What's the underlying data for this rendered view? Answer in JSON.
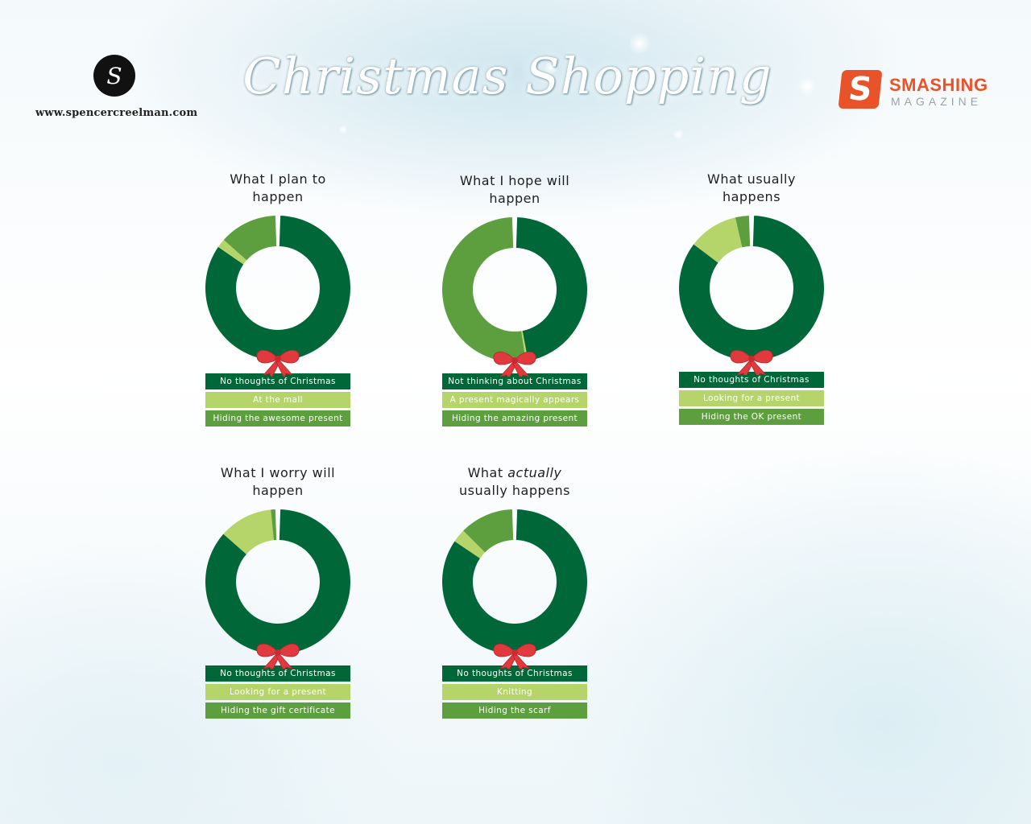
{
  "header": {
    "logo_letter": "S",
    "site_url": "www.spencercreelman.com",
    "title": "Christmas Shopping",
    "brand_badge": "S",
    "brand_name": "SMASHING",
    "brand_sub": "MAGAZINE"
  },
  "colors": {
    "dark": "#006838",
    "light": "#b5d56a",
    "mid": "#5d9e3f",
    "bow": "#e03a3e"
  },
  "chart_data": [
    {
      "type": "pie",
      "title": "What I plan to happen",
      "title_lines": [
        "What I plan to",
        "happen"
      ],
      "slices": [
        {
          "label": "No thoughts of Christmas",
          "value": 85,
          "color": "dark"
        },
        {
          "label": "At the mall",
          "value": 2,
          "color": "light"
        },
        {
          "label": "Hiding the awesome present",
          "value": 13,
          "color": "mid"
        }
      ]
    },
    {
      "type": "pie",
      "title": "What I hope will happen",
      "title_lines": [
        "What I hope will",
        "happen"
      ],
      "slices": [
        {
          "label": "Not thinking about Christmas",
          "value": 47,
          "color": "dark"
        },
        {
          "label": "A present magically appears",
          "value": 0.5,
          "color": "light"
        },
        {
          "label": "Hiding the amazing present",
          "value": 52.5,
          "color": "mid"
        }
      ]
    },
    {
      "type": "pie",
      "title": "What usually happens",
      "title_lines": [
        "What usually",
        "happens"
      ],
      "slices": [
        {
          "label": "No thoughts of Christmas",
          "value": 84,
          "color": "dark"
        },
        {
          "label": "Looking for a present",
          "value": 11,
          "color": "light"
        },
        {
          "label": "Hiding the OK present",
          "value": 3,
          "color": "mid"
        }
      ]
    },
    {
      "type": "pie",
      "title": "What I worry will happen",
      "title_lines": [
        "What I worry will",
        "happen"
      ],
      "slices": [
        {
          "label": "No thoughts of Christmas",
          "value": 86,
          "color": "dark"
        },
        {
          "label": "Looking for a present",
          "value": 12,
          "color": "light"
        },
        {
          "label": "Hiding the gift certificate",
          "value": 1,
          "color": "mid"
        }
      ]
    },
    {
      "type": "pie",
      "title": "What actually usually happens",
      "title_lines": [
        "What actually",
        "usually happens"
      ],
      "slices": [
        {
          "label": "No thoughts of Christmas",
          "value": 84,
          "color": "dark"
        },
        {
          "label": "Knitting",
          "value": 3,
          "color": "light"
        },
        {
          "label": "Hiding the scarf",
          "value": 12,
          "color": "mid"
        }
      ]
    }
  ]
}
